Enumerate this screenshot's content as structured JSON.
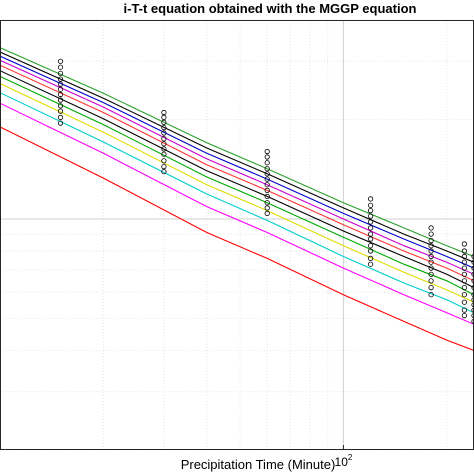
{
  "chart_data": {
    "type": "line",
    "title": "i-T-t equation obtained with the MGGP equation",
    "xlabel": "Precipitation Time (Minute)",
    "ylabel": "",
    "xscale": "log",
    "yscale": "log",
    "grid": true,
    "x_ticks": [
      {
        "base": "10",
        "exponent": "2",
        "value": 100
      }
    ],
    "xlim": [
      10,
      240
    ],
    "ylim": [
      20,
      400
    ],
    "x": [
      10,
      20,
      40,
      60,
      100,
      150,
      200,
      240
    ],
    "obs_x": [
      15,
      30,
      60,
      120,
      180,
      225,
      240
    ],
    "series": [
      {
        "color": "#2ca02c",
        "values": [
          330,
          240,
          170,
          142,
          112,
          94,
          83,
          77
        ]
      },
      {
        "color": "#000000",
        "values": [
          320,
          232,
          164,
          137,
          108,
          90,
          80,
          74
        ]
      },
      {
        "color": "#0000cc",
        "values": [
          311,
          225,
          158,
          132,
          104,
          87,
          77,
          71
        ]
      },
      {
        "color": "#cc00cc",
        "values": [
          302,
          218,
          152,
          127,
          100,
          83,
          74,
          68
        ]
      },
      {
        "color": "#ff3333",
        "values": [
          292,
          210,
          146,
          122,
          96,
          80,
          71,
          65
        ]
      },
      {
        "color": "#000000",
        "values": [
          281,
          201,
          140,
          117,
          92,
          77,
          68,
          62
        ]
      },
      {
        "color": "#00aa00",
        "values": [
          270,
          193,
          134,
          112,
          88,
          73,
          65,
          59
        ]
      },
      {
        "color": "#dddd00",
        "values": [
          257,
          183,
          127,
          106,
          83,
          69,
          61,
          56
        ]
      },
      {
        "color": "#00cccc",
        "values": [
          241,
          171,
          119,
          99,
          77,
          64,
          57,
          52
        ]
      },
      {
        "color": "#ff00ff",
        "values": [
          224,
          158,
          109,
          91,
          71,
          59,
          52,
          48
        ]
      },
      {
        "color": "#ff0000",
        "values": [
          190,
          133,
          91,
          76,
          59,
          49,
          43,
          40
        ]
      }
    ],
    "observed_points": [
      [
        300,
        288,
        276,
        265,
        256,
        247,
        238,
        229,
        220,
        212,
        203,
        195
      ],
      [
        210,
        203,
        196,
        189,
        182,
        175,
        169,
        163,
        157,
        150,
        144,
        139
      ],
      [
        160,
        154,
        148,
        142,
        137,
        132,
        127,
        122,
        117,
        112,
        108,
        104
      ],
      [
        115,
        110,
        106,
        102,
        98,
        94,
        90,
        87,
        83,
        80,
        76,
        73
      ],
      [
        94,
        90,
        86,
        83,
        80,
        77,
        74,
        71,
        68,
        65,
        62,
        59
      ],
      [
        84,
        80,
        77,
        74,
        71,
        68,
        65,
        62,
        59,
        56,
        53,
        51
      ],
      [
        77,
        74,
        71,
        68,
        65,
        62,
        59,
        57,
        55,
        53,
        51,
        49
      ]
    ]
  }
}
